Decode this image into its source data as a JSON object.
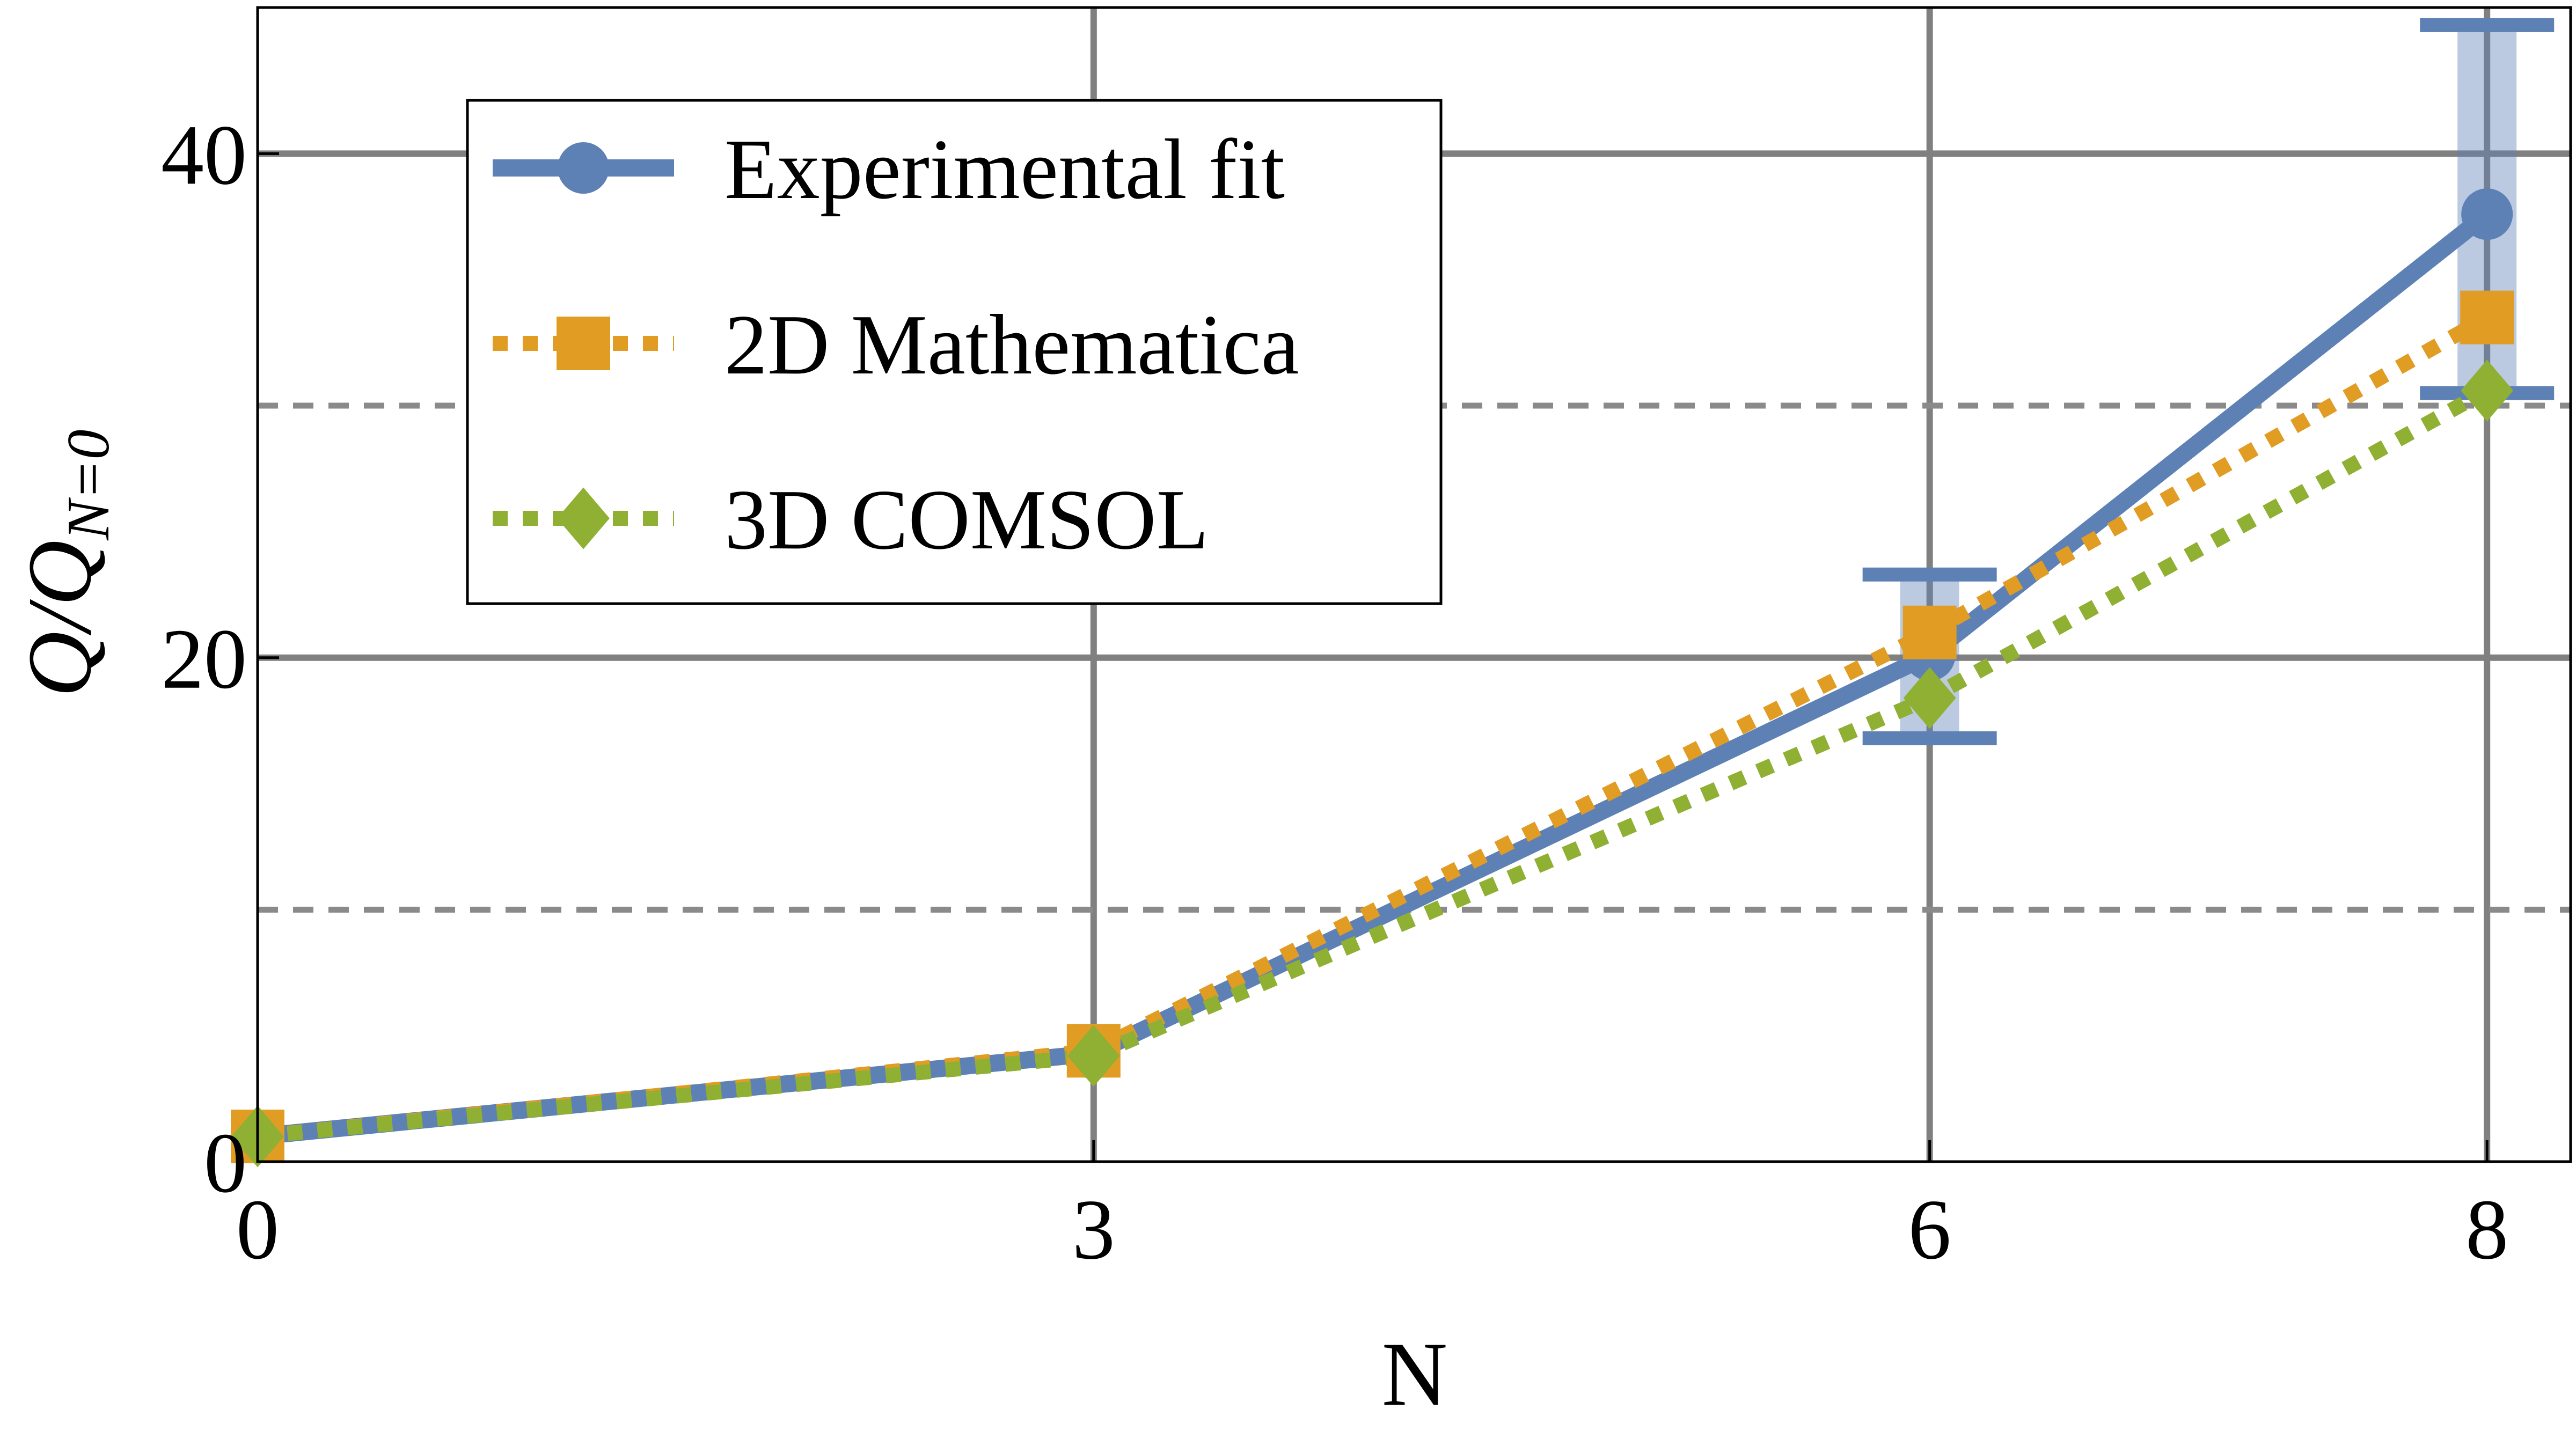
{
  "chart_data": {
    "type": "line",
    "title": "",
    "xlabel": "N",
    "ylabel": "Q/Q",
    "ylabel_subscript": "N=0",
    "x_ticks": [
      0,
      3,
      6,
      8
    ],
    "y_ticks": [
      0,
      20,
      40
    ],
    "y_minor_grid": [
      10,
      30
    ],
    "xlim": [
      0,
      8.3
    ],
    "ylim": [
      0,
      45.8
    ],
    "grid": true,
    "legend_position": "top-left",
    "series": [
      {
        "name": "Experimental fit",
        "color": "#5e81b5",
        "style": "solid",
        "marker": "circle",
        "x": [
          0,
          3,
          6,
          8
        ],
        "y": [
          1,
          4.3,
          20.1,
          37.6
        ],
        "error_bars": [
          null,
          null,
          [
            16.8,
            23.3
          ],
          [
            30.5,
            45.1
          ]
        ]
      },
      {
        "name": "2D Mathematica",
        "color": "#e19c24",
        "style": "dotted",
        "marker": "square",
        "x": [
          0,
          3,
          6,
          8
        ],
        "y": [
          1,
          4.4,
          21,
          33.5
        ]
      },
      {
        "name": "3D COMSOL",
        "color": "#8fb032",
        "style": "dotted",
        "marker": "diamond",
        "x": [
          0,
          3,
          6,
          8
        ],
        "y": [
          1,
          4.2,
          18.4,
          30.6
        ]
      }
    ]
  }
}
